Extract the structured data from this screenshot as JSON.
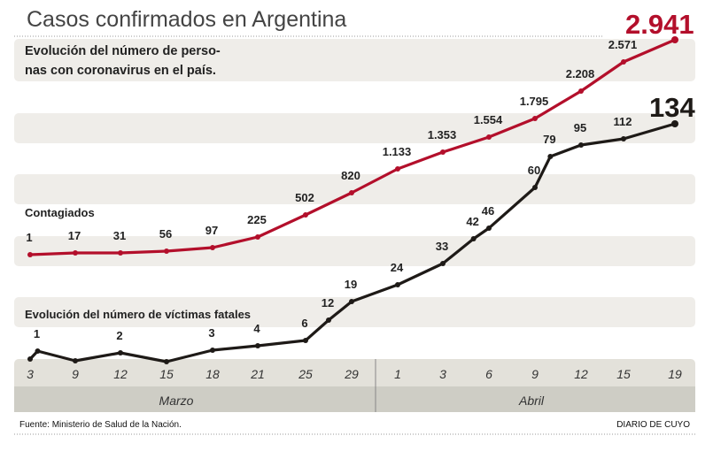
{
  "header": {
    "title": "Casos confirmados en Argentina",
    "subtitle_lines": [
      "Evolución del número de perso-",
      "nas con coronavirus en el país."
    ]
  },
  "labels": {
    "contagiados": "Contagiados",
    "victimas": "Evolución del número de víctimas fatales"
  },
  "footer": {
    "source": "Fuente: Ministerio de Salud de la Nación.",
    "brand": "DIARIO DE CUYO"
  },
  "colors": {
    "cases": "#b30f2b",
    "deaths": "#1e1a17",
    "band": "#efede9",
    "axis_band": "#e3e1da",
    "month_band": "#cecdc5"
  },
  "chart_data": {
    "type": "line",
    "title": "Casos confirmados en Argentina",
    "xlabel": "",
    "ylabel": "",
    "x_ticks": [
      {
        "day": 3,
        "label": "3",
        "month": "Marzo"
      },
      {
        "day": 9,
        "label": "9",
        "month": "Marzo"
      },
      {
        "day": 12,
        "label": "12",
        "month": "Marzo"
      },
      {
        "day": 15,
        "label": "15",
        "month": "Marzo"
      },
      {
        "day": 18,
        "label": "18",
        "month": "Marzo"
      },
      {
        "day": 21,
        "label": "21",
        "month": "Marzo"
      },
      {
        "day": 25,
        "label": "25",
        "month": "Marzo"
      },
      {
        "day": 29,
        "label": "29",
        "month": "Marzo"
      },
      {
        "day": 32,
        "label": "1",
        "month": "Abril"
      },
      {
        "day": 34,
        "label": "3",
        "month": "Abril"
      },
      {
        "day": 37,
        "label": "6",
        "month": "Abril"
      },
      {
        "day": 40,
        "label": "9",
        "month": "Abril"
      },
      {
        "day": 43,
        "label": "12",
        "month": "Abril"
      },
      {
        "day": 46,
        "label": "15",
        "month": "Abril"
      },
      {
        "day": 50,
        "label": "19",
        "month": "Abril"
      }
    ],
    "months": [
      {
        "name": "Marzo",
        "from_day": 3,
        "to_day": 31
      },
      {
        "name": "Abril",
        "from_day": 31,
        "to_day": 50
      }
    ],
    "series": [
      {
        "name": "Contagiados",
        "color": "#b30f2b",
        "points": [
          {
            "day": 3,
            "value": 1,
            "label": "1"
          },
          {
            "day": 9,
            "value": 17,
            "label": "17"
          },
          {
            "day": 12,
            "value": 31,
            "label": "31"
          },
          {
            "day": 15,
            "value": 56,
            "label": "56"
          },
          {
            "day": 18,
            "value": 97,
            "label": "97"
          },
          {
            "day": 21,
            "value": 225,
            "label": "225"
          },
          {
            "day": 25,
            "value": 502,
            "label": "502"
          },
          {
            "day": 29,
            "value": 820,
            "label": "820"
          },
          {
            "day": 32,
            "value": 1133,
            "label": "1.133"
          },
          {
            "day": 34,
            "value": 1353,
            "label": "1.353"
          },
          {
            "day": 37,
            "value": 1554,
            "label": "1.554"
          },
          {
            "day": 40,
            "value": 1795,
            "label": "1.795"
          },
          {
            "day": 43,
            "value": 2208,
            "label": "2.208"
          },
          {
            "day": 46,
            "value": 2571,
            "label": "2.571"
          },
          {
            "day": 50,
            "value": 2941,
            "label": "2.941"
          }
        ]
      },
      {
        "name": "Víctimas fatales",
        "color": "#1e1a17",
        "points": [
          {
            "day": 3,
            "value": 0,
            "label": ""
          },
          {
            "day": 4,
            "value": 1,
            "label": "1"
          },
          {
            "day": 9,
            "value": 0,
            "label": ""
          },
          {
            "day": 12,
            "value": 2,
            "label": "2"
          },
          {
            "day": 15,
            "value": 0,
            "label": ""
          },
          {
            "day": 18,
            "value": 3,
            "label": "3"
          },
          {
            "day": 21,
            "value": 4,
            "label": "4"
          },
          {
            "day": 25,
            "value": 6,
            "label": "6"
          },
          {
            "day": 27,
            "value": 12,
            "label": "12"
          },
          {
            "day": 29,
            "value": 19,
            "label": "19"
          },
          {
            "day": 32,
            "value": 24,
            "label": "24"
          },
          {
            "day": 34,
            "value": 33,
            "label": "33"
          },
          {
            "day": 36,
            "value": 42,
            "label": "42"
          },
          {
            "day": 37,
            "value": 46,
            "label": "46"
          },
          {
            "day": 40,
            "value": 60,
            "label": "60"
          },
          {
            "day": 41,
            "value": 79,
            "label": "79"
          },
          {
            "day": 43,
            "value": 95,
            "label": "95"
          },
          {
            "day": 46,
            "value": 112,
            "label": "112"
          },
          {
            "day": 50,
            "value": 134,
            "label": "134"
          }
        ]
      }
    ],
    "final_values": {
      "cases": "2.941",
      "deaths": "134"
    },
    "grid": false,
    "legend": "none"
  }
}
